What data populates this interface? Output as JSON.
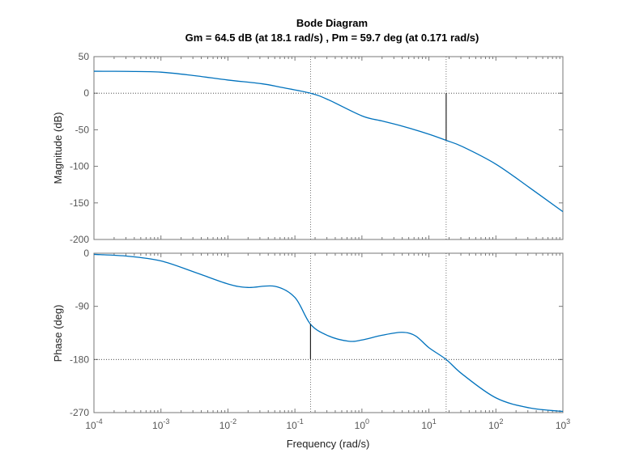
{
  "chart_data": {
    "type": "line",
    "title": "Bode Diagram",
    "subtitle": "Gm = 64.5 dB (at 18.1 rad/s) ,  Pm = 59.7 deg (at 0.171 rad/s)",
    "xlabel": "Frequency  (rad/s)",
    "xscale": "log",
    "xlim": [
      0.0001,
      1000
    ],
    "x_ticks": [
      "10^-4",
      "10^-3",
      "10^-2",
      "10^-1",
      "10^0",
      "10^1",
      "10^2",
      "10^3"
    ],
    "color": "#0072BD",
    "margins": {
      "gain_margin_db": 64.5,
      "gain_crossover_rad_s": 18.1,
      "phase_margin_deg": 59.7,
      "phase_crossover_rad_s": 0.171
    },
    "subplots": [
      {
        "name": "magnitude",
        "ylabel": "Magnitude (dB)",
        "ylim": [
          -200,
          50
        ],
        "y_ticks": [
          50,
          0,
          -50,
          -100,
          -150,
          -200
        ],
        "reference_line": 0,
        "log10_x": [
          -4,
          -3.5,
          -3,
          -2.5,
          -2,
          -1.5,
          -1.2,
          -0.767,
          -0.5,
          0,
          0.3,
          0.6,
          1,
          1.258,
          1.5,
          2,
          2.5,
          3
        ],
        "values": [
          30,
          29.8,
          28.8,
          24,
          18,
          13,
          8,
          0,
          -9,
          -31,
          -38,
          -45,
          -56,
          -64.5,
          -73,
          -97,
          -129,
          -162
        ]
      },
      {
        "name": "phase",
        "ylabel": "Phase (deg)",
        "ylim": [
          -270,
          0
        ],
        "y_ticks": [
          0,
          -90,
          -180,
          -270
        ],
        "reference_line": -180,
        "log10_x": [
          -4,
          -3.5,
          -3,
          -2.5,
          -2,
          -1.7,
          -1.3,
          -1,
          -0.767,
          -0.5,
          -0.2,
          0,
          0.3,
          0.6,
          0.8,
          1,
          1.258,
          1.5,
          2,
          2.5,
          3
        ],
        "values": [
          -2,
          -5,
          -13,
          -32,
          -52,
          -58,
          -56,
          -75,
          -120.3,
          -140,
          -149,
          -147,
          -139,
          -134,
          -140,
          -160,
          -180,
          -205,
          -245,
          -262,
          -268
        ]
      }
    ]
  }
}
